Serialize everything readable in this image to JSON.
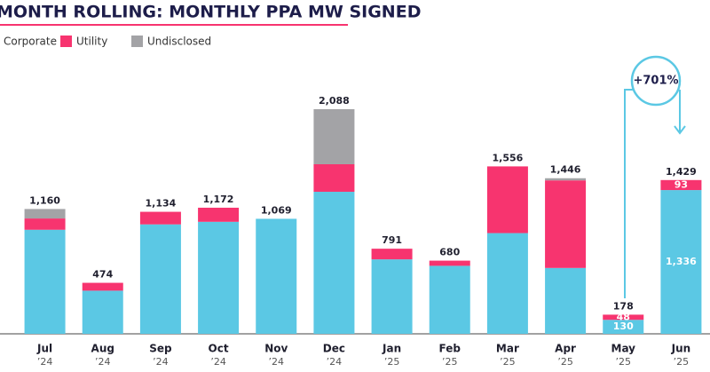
{
  "chart_data": {
    "type": "stacked_bar",
    "title": "MONTH ROLLING: MONTHLY PPA MW SIGNED",
    "categories": [
      "Jul",
      "Aug",
      "Sep",
      "Oct",
      "Nov",
      "Dec",
      "Jan",
      "Feb",
      "Mar",
      "Apr",
      "May",
      "Jun"
    ],
    "x_sublabels": [
      "’24",
      "’24",
      "’24",
      "’24",
      "’24",
      "’24",
      "’25",
      "’25",
      "’25",
      "’25",
      "’25",
      "’25"
    ],
    "series": [
      {
        "name": "Corporate",
        "color": "#5bc8e4",
        "values": [
          967,
          401,
          1017,
          1041,
          1069,
          1320,
          692,
          632,
          936,
          612,
          130,
          1336
        ],
        "value_labels": [
          null,
          null,
          null,
          null,
          null,
          null,
          null,
          null,
          null,
          null,
          "130",
          "1,336"
        ]
      },
      {
        "name": "Utility",
        "color": "#f7346f",
        "values": [
          105,
          73,
          117,
          131,
          0,
          256,
          99,
          48,
          620,
          814,
          48,
          93
        ],
        "value_labels": [
          null,
          null,
          null,
          null,
          null,
          null,
          null,
          null,
          null,
          null,
          "48",
          "93"
        ]
      },
      {
        "name": "Undisclosed",
        "color": "#a3a3a6",
        "values": [
          88,
          0,
          0,
          0,
          0,
          512,
          0,
          0,
          0,
          20,
          0,
          0
        ]
      }
    ],
    "totals": [
      {
        "value": 1160,
        "label": "1,160"
      },
      {
        "value": 474,
        "label": "474"
      },
      {
        "value": 1134,
        "label": "1,134"
      },
      {
        "value": 1172,
        "label": "1,172"
      },
      {
        "value": 1069,
        "label": "1,069"
      },
      {
        "value": 2088,
        "label": "2,088"
      },
      {
        "value": 791,
        "label": "791"
      },
      {
        "value": 680,
        "label": "680"
      },
      {
        "value": 1556,
        "label": "1,556"
      },
      {
        "value": 1446,
        "label": "1,446"
      },
      {
        "value": 178,
        "label": "178"
      },
      {
        "value": 1429,
        "label": "1,429"
      }
    ],
    "ylim": [
      0,
      2500
    ],
    "annotation": "+701%"
  }
}
